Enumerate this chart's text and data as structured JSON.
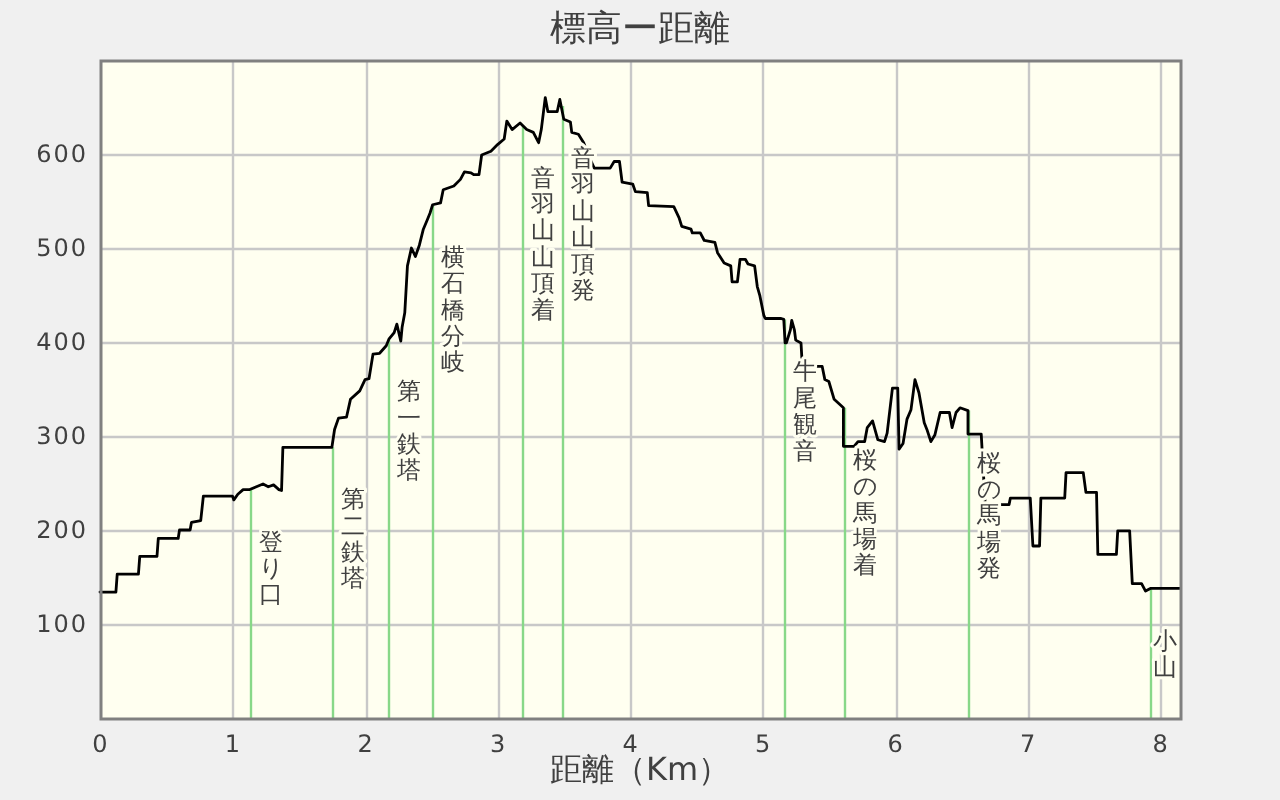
{
  "chart_data": {
    "type": "line",
    "title": "標高ー距離",
    "xlabel": "距離（Km）",
    "x": [
      0.0,
      0.12,
      0.13,
      0.29,
      0.3,
      0.43,
      0.44,
      0.59,
      0.6,
      0.68,
      0.69,
      0.76,
      0.78,
      1.0,
      1.01,
      1.04,
      1.08,
      1.13,
      1.18,
      1.23,
      1.27,
      1.31,
      1.35,
      1.37,
      1.38,
      1.75,
      1.77,
      1.8,
      1.86,
      1.89,
      1.96,
      2.0,
      2.03,
      2.06,
      2.11,
      2.16,
      2.18,
      2.22,
      2.24,
      2.27,
      2.28,
      2.3,
      2.32,
      2.35,
      2.38,
      2.41,
      2.44,
      2.47,
      2.49,
      2.51,
      2.57,
      2.59,
      2.67,
      2.72,
      2.75,
      2.8,
      2.82,
      2.86,
      2.88,
      2.95,
      3.0,
      3.05,
      3.07,
      3.11,
      3.17,
      3.22,
      3.27,
      3.31,
      3.33,
      3.36,
      3.38,
      3.45,
      3.47,
      3.5,
      3.55,
      3.56,
      3.61,
      3.65,
      3.7,
      3.73,
      3.85,
      3.88,
      3.92,
      3.94,
      4.02,
      4.04,
      4.13,
      4.14,
      4.33,
      4.37,
      4.39,
      4.46,
      4.47,
      4.53,
      4.56,
      4.64,
      4.66,
      4.71,
      4.76,
      4.77,
      4.81,
      4.83,
      4.87,
      4.89,
      4.94,
      4.96,
      4.98,
      5.01,
      5.02,
      5.14,
      5.16,
      5.17,
      5.18,
      5.21,
      5.22,
      5.24,
      5.25,
      5.29,
      5.3,
      5.45,
      5.47,
      5.5,
      5.54,
      5.61,
      5.61,
      5.69,
      5.72,
      5.77,
      5.79,
      5.83,
      5.87,
      5.92,
      5.94,
      5.98,
      6.02,
      6.03,
      6.06,
      6.09,
      6.12,
      6.15,
      6.18,
      6.22,
      6.24,
      6.27,
      6.3,
      6.34,
      6.41,
      6.43,
      6.46,
      6.49,
      6.55,
      6.55,
      6.65,
      6.68,
      6.86,
      6.87,
      7.02,
      7.04,
      7.09,
      7.1,
      7.28,
      7.29,
      7.42,
      7.44,
      7.52,
      7.53,
      7.67,
      7.68,
      7.77,
      7.79,
      7.86,
      7.89,
      7.93,
      8.15
    ],
    "values": [
      134,
      134,
      153,
      153,
      172,
      172,
      191,
      191,
      200,
      200,
      208,
      210,
      236,
      236,
      232,
      238,
      243,
      243,
      246,
      249,
      246,
      248,
      243,
      242,
      288,
      288,
      307,
      319,
      320,
      339,
      348,
      360,
      361,
      387,
      388,
      396,
      403,
      410,
      419,
      401,
      416,
      431,
      481,
      500,
      491,
      503,
      520,
      530,
      537,
      546,
      548,
      562,
      566,
      573,
      581,
      580,
      578,
      578,
      599,
      603,
      610,
      616,
      635,
      626,
      633,
      626,
      623,
      612,
      626,
      660,
      645,
      645,
      658,
      637,
      634,
      623,
      621,
      612,
      594,
      585,
      585,
      592,
      592,
      570,
      568,
      560,
      559,
      545,
      544,
      532,
      523,
      520,
      516,
      516,
      508,
      506,
      495,
      484,
      481,
      464,
      464,
      488,
      488,
      483,
      481,
      459,
      449,
      428,
      425,
      425,
      424,
      399,
      399,
      413,
      423,
      413,
      402,
      399,
      374,
      374,
      360,
      358,
      339,
      330,
      289,
      289,
      294,
      294,
      309,
      316,
      296,
      294,
      303,
      351,
      351,
      286,
      292,
      318,
      328,
      360,
      346,
      314,
      307,
      294,
      301,
      325,
      325,
      309,
      325,
      330,
      327,
      302,
      302,
      227,
      227,
      234,
      234,
      183,
      183,
      234,
      234,
      261,
      261,
      240,
      240,
      174,
      174,
      199,
      199,
      143,
      143,
      135,
      138,
      138
    ],
    "color": "#000000",
    "xlim": [
      0,
      8.15
    ],
    "ylim": [
      0,
      700
    ],
    "xticks": [
      0,
      1,
      2,
      3,
      4,
      5,
      6,
      7,
      8
    ],
    "yticks": [
      100,
      200,
      300,
      400,
      500,
      600
    ],
    "grid": true,
    "ref_lines": [
      {
        "axis": "x",
        "value": 1.13,
        "label": "登り口",
        "color": "#88d888"
      },
      {
        "axis": "x",
        "value": 1.75,
        "label": "第二鉄塔",
        "color": "#88d888"
      },
      {
        "axis": "x",
        "value": 2.18,
        "label": "第一鉄塔",
        "color": "#88d888"
      },
      {
        "axis": "x",
        "value": 2.51,
        "label": "横石橋分岐",
        "color": "#88d888"
      },
      {
        "axis": "x",
        "value": 3.19,
        "label": "音羽山山頂着",
        "color": "#88d888"
      },
      {
        "axis": "x",
        "value": 3.48,
        "label": "音羽山山頂発",
        "color": "#88d888"
      },
      {
        "axis": "x",
        "value": 5.16,
        "label": "牛尾観音",
        "color": "#88d888"
      },
      {
        "axis": "x",
        "value": 5.61,
        "label": "桜の馬場着",
        "color": "#88d888"
      },
      {
        "axis": "x",
        "value": 6.55,
        "label": "桜の馬場発",
        "color": "#88d888"
      },
      {
        "axis": "x",
        "value": 7.92,
        "label": "小山",
        "color": "#88d888"
      }
    ]
  }
}
